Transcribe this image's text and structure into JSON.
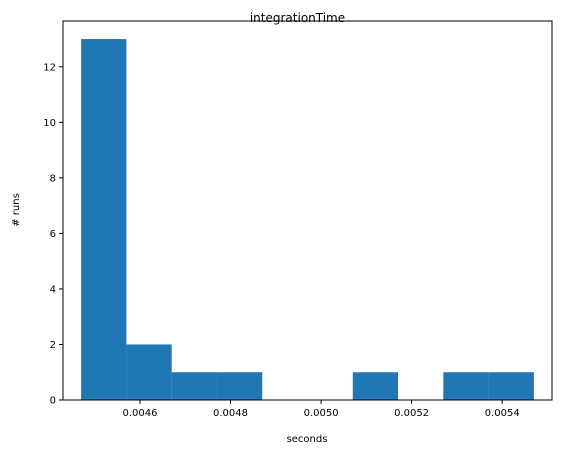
{
  "chart_data": {
    "type": "bar",
    "title": "integrationTime",
    "xlabel": "seconds",
    "ylabel": "# runs",
    "bins": [
      {
        "x0": 0.00447,
        "x1": 0.00457,
        "count": 13
      },
      {
        "x0": 0.00457,
        "x1": 0.00467,
        "count": 2
      },
      {
        "x0": 0.00467,
        "x1": 0.00477,
        "count": 1
      },
      {
        "x0": 0.00477,
        "x1": 0.00487,
        "count": 1
      },
      {
        "x0": 0.00487,
        "x1": 0.00497,
        "count": 0
      },
      {
        "x0": 0.00497,
        "x1": 0.00507,
        "count": 0
      },
      {
        "x0": 0.00507,
        "x1": 0.00517,
        "count": 1
      },
      {
        "x0": 0.00517,
        "x1": 0.00527,
        "count": 0
      },
      {
        "x0": 0.00527,
        "x1": 0.00537,
        "count": 1
      },
      {
        "x0": 0.00537,
        "x1": 0.00547,
        "count": 1
      }
    ],
    "x_ticks": [
      "0.0046",
      "0.0048",
      "0.0050",
      "0.0052",
      "0.0054"
    ],
    "x_tick_values": [
      0.0046,
      0.0048,
      0.005,
      0.0052,
      0.0054
    ],
    "y_ticks": [
      "0",
      "2",
      "4",
      "6",
      "8",
      "10",
      "12"
    ],
    "y_tick_values": [
      0,
      2,
      4,
      6,
      8,
      10,
      12
    ],
    "xlim": [
      0.00443,
      0.00551
    ],
    "ylim": [
      0,
      13.65
    ],
    "bar_color": "#1f77b4",
    "grid": false
  }
}
